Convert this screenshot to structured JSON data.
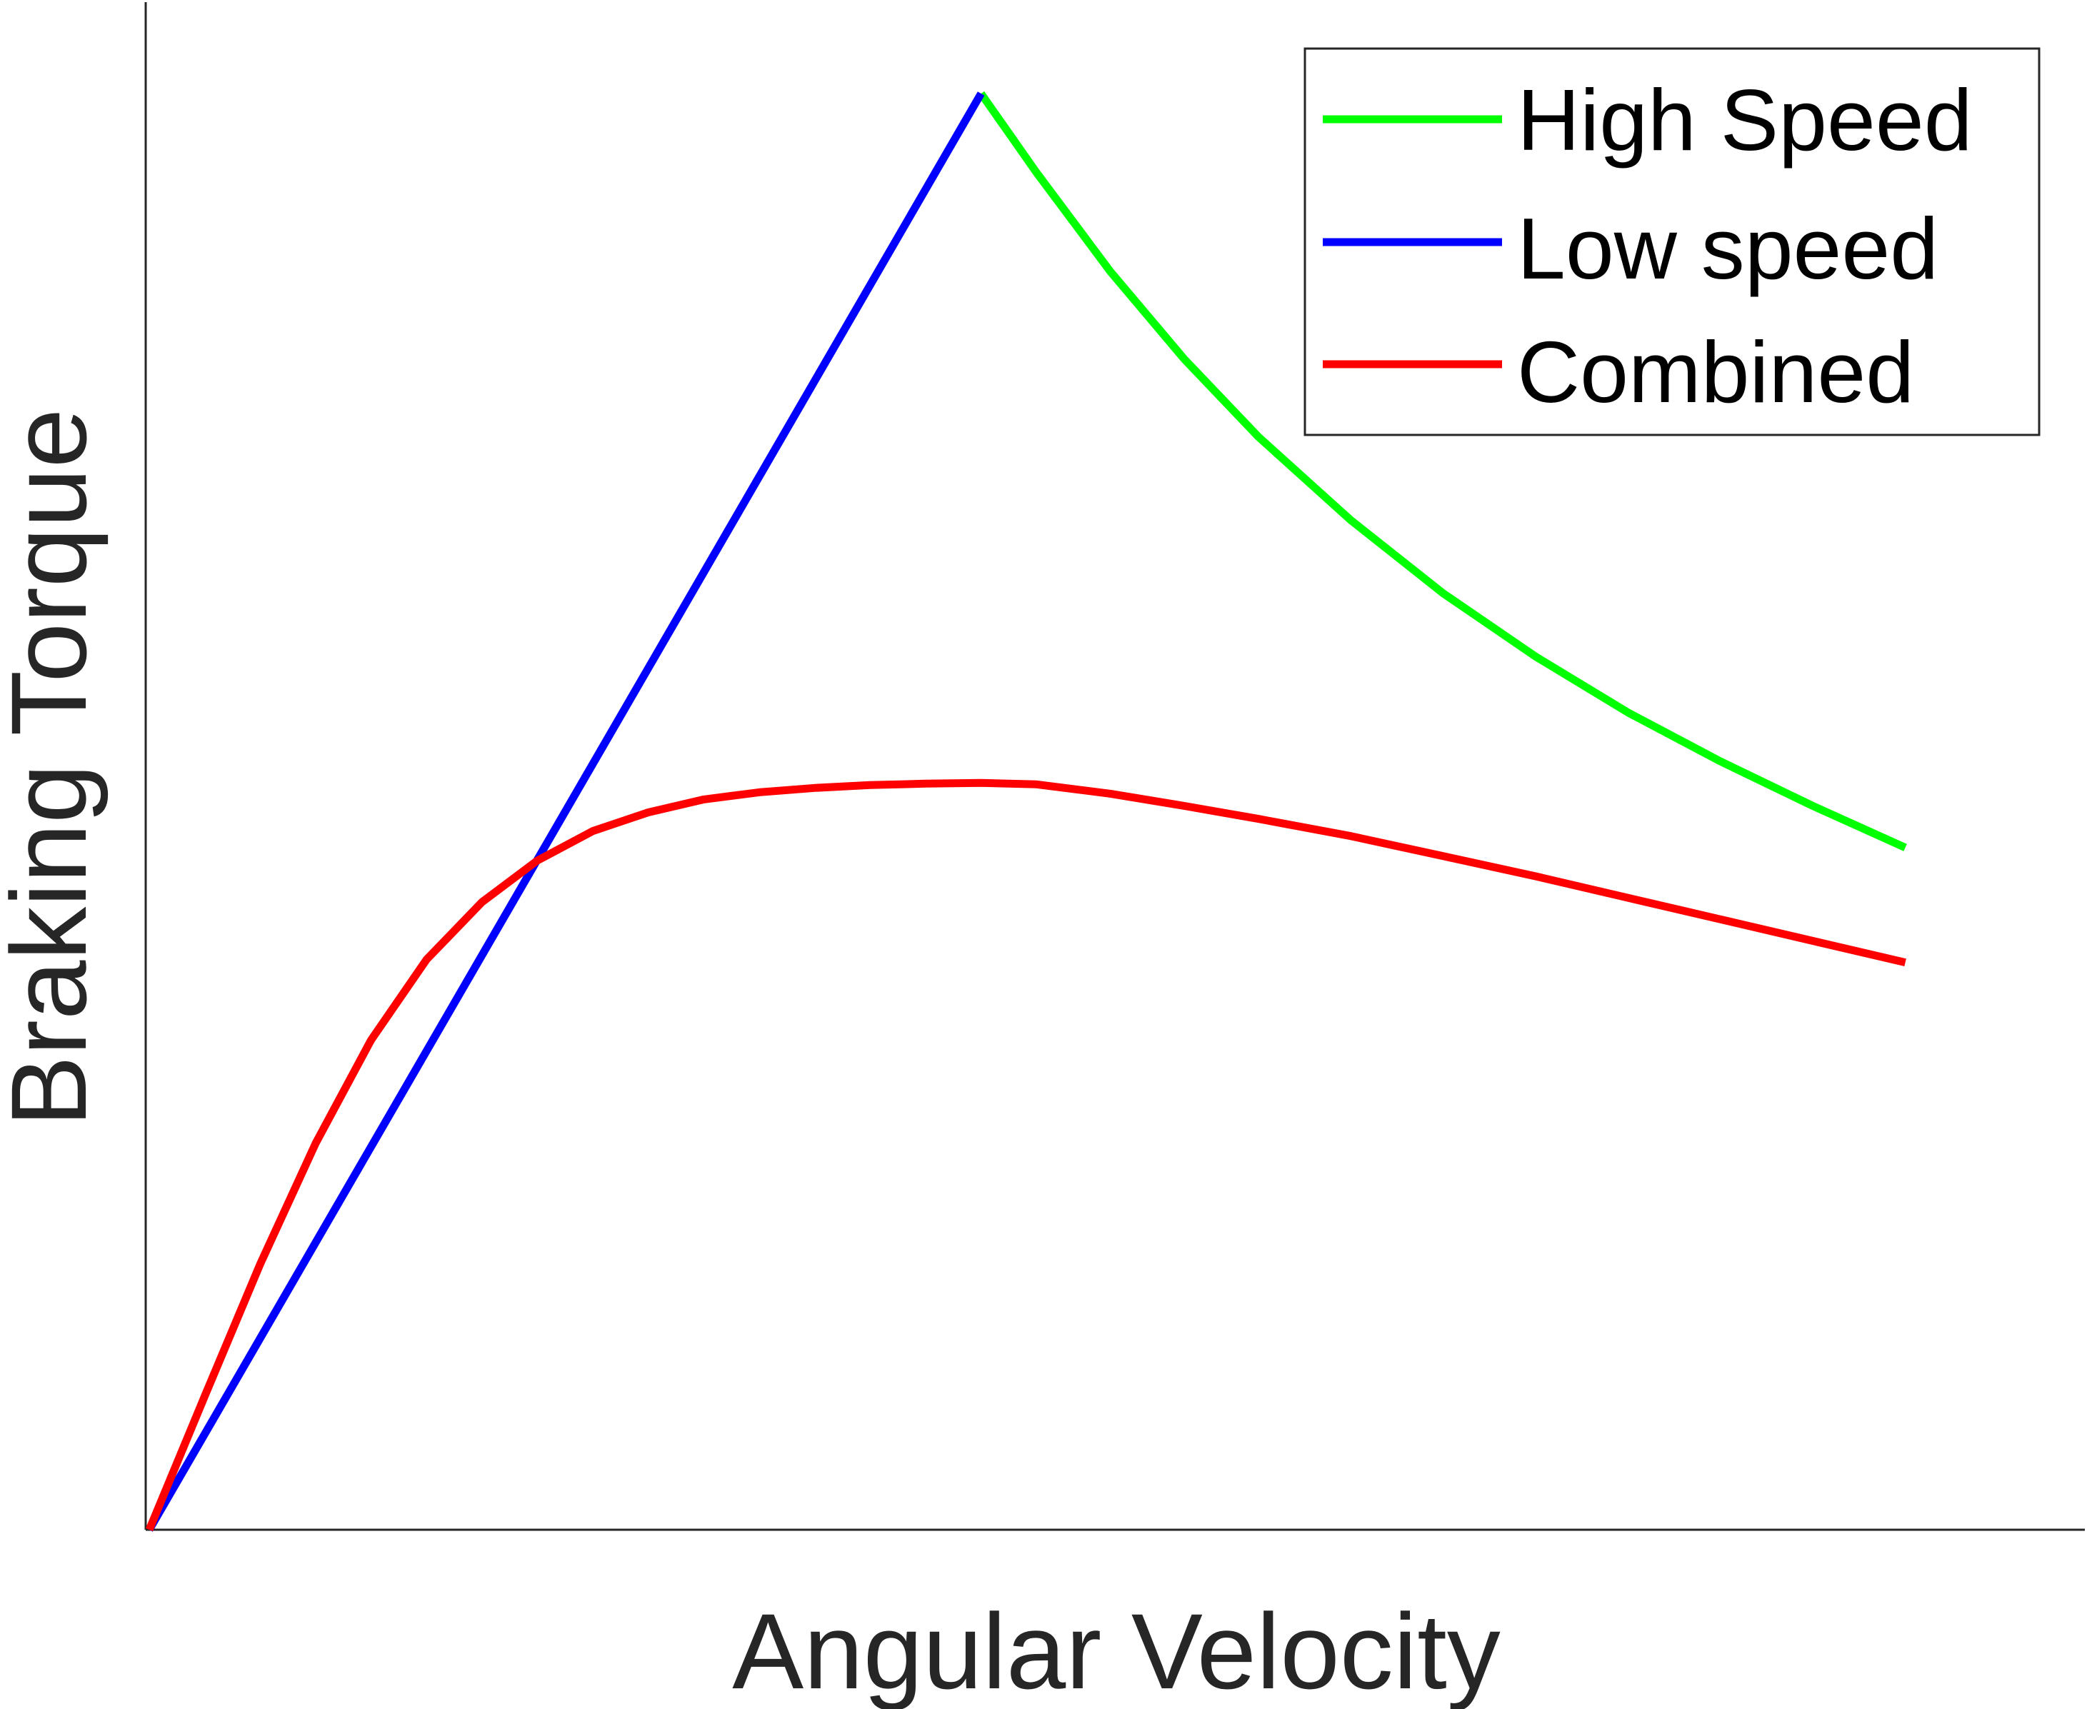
{
  "chart_data": {
    "type": "line",
    "title": "",
    "xlabel": "Angular Velocity",
    "ylabel": "Braking Torque",
    "xlim": [
      0,
      10
    ],
    "ylim": [
      0,
      1
    ],
    "x_ticks_visible": false,
    "y_ticks_visible": false,
    "grid": false,
    "legend_position": "top-right",
    "series": [
      {
        "name": "High Speed",
        "color": "#00ff00",
        "x": [
          4.5,
          4.8,
          5.2,
          5.6,
          6.0,
          6.5,
          7.0,
          7.5,
          8.0,
          8.5,
          9.0,
          9.5
        ],
        "y": [
          1.0,
          0.945,
          0.876,
          0.815,
          0.761,
          0.703,
          0.652,
          0.608,
          0.569,
          0.535,
          0.504,
          0.475
        ]
      },
      {
        "name": "Low speed",
        "color": "#0000ff",
        "x": [
          0,
          4.5
        ],
        "y": [
          0,
          1.0
        ]
      },
      {
        "name": "Combined",
        "color": "#ff0000",
        "x": [
          0,
          0.3,
          0.6,
          0.9,
          1.2,
          1.5,
          1.8,
          2.1,
          2.4,
          2.7,
          3.0,
          3.3,
          3.6,
          3.9,
          4.2,
          4.5,
          4.8,
          5.2,
          5.6,
          6.0,
          6.5,
          7.0,
          7.5,
          8.0,
          8.5,
          9.0,
          9.5
        ],
        "y": [
          0,
          0.093,
          0.185,
          0.269,
          0.341,
          0.397,
          0.437,
          0.466,
          0.4865,
          0.4995,
          0.5085,
          0.5135,
          0.5165,
          0.5185,
          0.5195,
          0.52,
          0.519,
          0.5125,
          0.504,
          0.495,
          0.483,
          0.469,
          0.455,
          0.44,
          0.425,
          0.41,
          0.395
        ]
      }
    ]
  }
}
